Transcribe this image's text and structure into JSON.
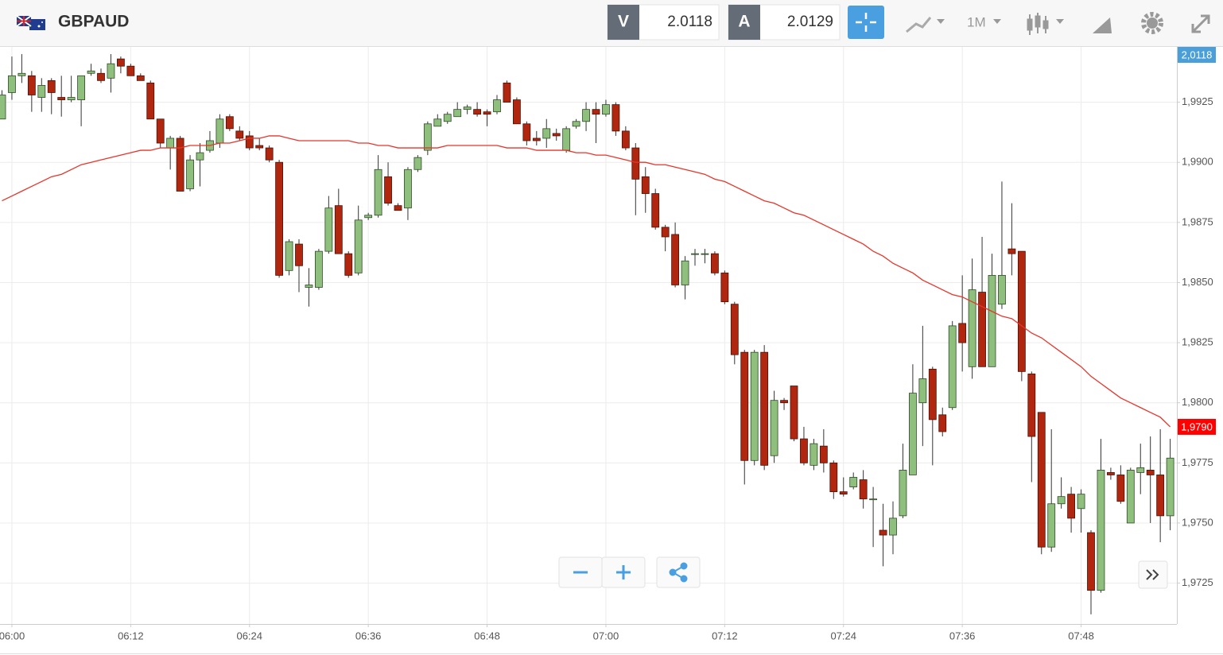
{
  "header": {
    "symbol": "GBPAUD",
    "bid_label": "V",
    "bid": 2.0118,
    "ask_label": "A",
    "ask": 2.0129,
    "timeframe": "1M"
  },
  "chart_data": {
    "type": "candlestick",
    "categories": [
      null,
      "06:00",
      null,
      null,
      null,
      null,
      null,
      null,
      null,
      null,
      null,
      null,
      null,
      "06:12",
      null,
      null,
      null,
      null,
      null,
      null,
      null,
      null,
      null,
      null,
      null,
      "06:24",
      null,
      null,
      null,
      null,
      null,
      null,
      null,
      null,
      null,
      null,
      null,
      "06:36",
      null,
      null,
      null,
      null,
      null,
      null,
      null,
      null,
      null,
      null,
      null,
      "06:48",
      null,
      null,
      null,
      null,
      null,
      null,
      null,
      null,
      null,
      null,
      null,
      "07:00",
      null,
      null,
      null,
      null,
      null,
      null,
      null,
      null,
      null,
      null,
      null,
      "07:12",
      null,
      null,
      null,
      null,
      null,
      null,
      null,
      null,
      null,
      null,
      null,
      "07:24",
      null,
      null,
      null,
      null,
      null,
      null,
      null,
      null,
      null,
      null,
      null,
      "07:36",
      null,
      null,
      null,
      null,
      null,
      null,
      null,
      null,
      null,
      null,
      null,
      "07:48",
      null,
      null,
      null,
      null,
      null,
      null,
      null,
      null,
      null
    ],
    "open": [
      1.9918,
      1.9929,
      1.9936,
      1.9936,
      1.9927,
      1.9934,
      1.9927,
      1.9926,
      1.9926,
      1.9937,
      1.9937,
      1.9935,
      1.9943,
      1.994,
      1.9936,
      1.9933,
      1.9918,
      1.9906,
      1.991,
      1.9889,
      1.9901,
      1.9905,
      1.9908,
      1.9919,
      1.9913,
      1.9911,
      1.9907,
      1.9906,
      1.99,
      1.9855,
      1.9866,
      1.9848,
      1.9848,
      1.9863,
      1.9882,
      1.9862,
      1.9854,
      1.9877,
      1.9878,
      1.9894,
      1.9882,
      1.9881,
      1.9897,
      1.9905,
      1.9915,
      1.9917,
      1.9919,
      1.9922,
      1.9922,
      1.9921,
      1.9921,
      1.9933,
      1.9926,
      1.9916,
      1.991,
      1.991,
      1.9912,
      1.9905,
      1.9915,
      1.9917,
      1.9922,
      1.992,
      1.9924,
      1.9913,
      1.9906,
      1.9894,
      1.9887,
      1.9873,
      1.987,
      1.9849,
      1.9862,
      1.9862,
      1.9862,
      1.9854,
      1.9841,
      1.9821,
      1.9776,
      1.9821,
      1.9778,
      1.9801,
      1.9807,
      1.9785,
      1.9774,
      1.9782,
      1.9775,
      1.9763,
      1.9765,
      1.9768,
      1.976,
      1.9747,
      1.9745,
      1.9753,
      1.977,
      1.98,
      1.9814,
      1.9795,
      1.9798,
      1.9833,
      1.9815,
      1.9846,
      1.9815,
      1.9841,
      1.9864,
      1.9863,
      1.9812,
      1.9796,
      1.974,
      1.9758,
      1.9762,
      1.9756,
      1.9746,
      1.9722,
      1.9771,
      1.977,
      1.975,
      1.9771,
      1.9772,
      1.977,
      1.9753
    ],
    "high": [
      1.993,
      1.9944,
      1.9945,
      1.9938,
      1.9935,
      1.9935,
      1.9936,
      1.9936,
      1.9936,
      1.9941,
      1.9939,
      1.9945,
      1.9944,
      1.9941,
      1.9937,
      1.9934,
      1.9918,
      1.9911,
      1.9911,
      1.9903,
      1.9908,
      1.9913,
      1.992,
      1.992,
      1.9915,
      1.9913,
      1.991,
      1.9907,
      1.9901,
      1.9868,
      1.9868,
      1.9856,
      1.9864,
      1.9886,
      1.9889,
      1.9863,
      1.9882,
      1.9879,
      1.9903,
      1.99,
      1.9883,
      1.9898,
      1.9903,
      1.9917,
      1.992,
      1.9921,
      1.9925,
      1.9924,
      1.9925,
      1.9922,
      1.9928,
      1.9934,
      1.9927,
      1.9917,
      1.9913,
      1.9918,
      1.9914,
      1.9915,
      1.9918,
      1.9925,
      1.9925,
      1.9926,
      1.9925,
      1.9915,
      1.9908,
      1.9898,
      1.9889,
      1.9874,
      1.9875,
      1.9861,
      1.9864,
      1.9864,
      1.9863,
      1.9855,
      1.9842,
      1.9822,
      1.9822,
      1.9824,
      1.9805,
      1.9802,
      1.9807,
      1.979,
      1.9785,
      1.9789,
      1.9776,
      1.9769,
      1.9771,
      1.9772,
      1.9765,
      1.9758,
      1.9759,
      1.9783,
      1.9816,
      1.9832,
      1.9815,
      1.9798,
      1.9834,
      1.9853,
      1.986,
      1.9869,
      1.9862,
      1.9892,
      1.9883,
      1.9863,
      1.9813,
      1.9796,
      1.9789,
      1.9769,
      1.9765,
      1.9764,
      1.9747,
      1.9785,
      1.9773,
      1.9774,
      1.9773,
      1.9783,
      1.9786,
      1.9789,
      1.9785
    ],
    "low": [
      1.9918,
      1.9926,
      1.9933,
      1.9921,
      1.9921,
      1.992,
      1.9919,
      1.9925,
      1.9915,
      1.9936,
      1.9933,
      1.9929,
      1.9937,
      1.9936,
      1.9934,
      1.9918,
      1.9906,
      1.9897,
      1.9888,
      1.9888,
      1.989,
      1.9904,
      1.9906,
      1.9913,
      1.9909,
      1.9905,
      1.9905,
      1.99,
      1.9852,
      1.9853,
      1.9846,
      1.984,
      1.9847,
      1.9862,
      1.9862,
      1.9852,
      1.9853,
      1.9876,
      1.9877,
      1.9882,
      1.988,
      1.9876,
      1.9896,
      1.9903,
      1.9915,
      1.9916,
      1.9919,
      1.992,
      1.9919,
      1.9915,
      1.992,
      1.9925,
      1.9916,
      1.9907,
      1.9907,
      1.9906,
      1.9909,
      1.9904,
      1.9914,
      1.9913,
      1.9908,
      1.9919,
      1.9911,
      1.9905,
      1.9878,
      1.9879,
      1.9872,
      1.9863,
      1.9848,
      1.9843,
      1.9857,
      1.9858,
      1.9853,
      1.9841,
      1.9816,
      1.9766,
      1.9774,
      1.9772,
      1.9775,
      1.9797,
      1.9784,
      1.9774,
      1.9772,
      1.9771,
      1.976,
      1.9761,
      1.9764,
      1.9756,
      1.974,
      1.9732,
      1.9737,
      1.9752,
      1.977,
      1.9782,
      1.9774,
      1.9786,
      1.9797,
      1.9813,
      1.981,
      1.9815,
      1.9815,
      1.9839,
      1.9853,
      1.9809,
      1.9767,
      1.9737,
      1.9738,
      1.9756,
      1.9746,
      1.9746,
      1.9712,
      1.9721,
      1.9768,
      1.9758,
      1.975,
      1.9762,
      1.975,
      1.9742,
      1.9747
    ],
    "close": [
      1.9928,
      1.9936,
      1.9937,
      1.9928,
      1.9932,
      1.9929,
      1.9926,
      1.9927,
      1.9936,
      1.9938,
      1.9934,
      1.9941,
      1.994,
      1.9936,
      1.9934,
      1.9918,
      1.9908,
      1.991,
      1.9888,
      1.9901,
      1.9904,
      1.9909,
      1.9918,
      1.9914,
      1.991,
      1.9906,
      1.9906,
      1.9901,
      1.9853,
      1.9867,
      1.9857,
      1.9849,
      1.9863,
      1.9881,
      1.9862,
      1.9853,
      1.9876,
      1.9878,
      1.9897,
      1.9883,
      1.988,
      1.9897,
      1.9902,
      1.9916,
      1.9918,
      1.992,
      1.9922,
      1.9923,
      1.992,
      1.992,
      1.9926,
      1.9925,
      1.9916,
      1.9909,
      1.9909,
      1.9914,
      1.9911,
      1.9914,
      1.9917,
      1.9922,
      1.992,
      1.9924,
      1.9913,
      1.9906,
      1.9893,
      1.9887,
      1.9873,
      1.9869,
      1.9849,
      1.9859,
      1.9862,
      1.9862,
      1.9854,
      1.9842,
      1.982,
      1.9776,
      1.9821,
      1.9774,
      1.9801,
      1.98,
      1.9785,
      1.9775,
      1.9783,
      1.9775,
      1.9763,
      1.9762,
      1.9769,
      1.976,
      1.976,
      1.9745,
      1.9752,
      1.9772,
      1.9804,
      1.981,
      1.9793,
      1.9788,
      1.9832,
      1.9825,
      1.9847,
      1.9815,
      1.9853,
      1.9853,
      1.9862,
      1.9813,
      1.9786,
      1.974,
      1.9758,
      1.9761,
      1.9752,
      1.9762,
      1.9722,
      1.9772,
      1.977,
      1.9759,
      1.9772,
      1.9773,
      1.977,
      1.9753,
      1.9777
    ],
    "up_color": "#8fbf7c",
    "down_color": "#b1260f",
    "series": [
      {
        "type": "line",
        "color": "#e8342a",
        "values": [
          1.9884,
          1.9886,
          1.9888,
          1.989,
          1.9892,
          1.9894,
          1.9895,
          1.9897,
          1.9899,
          1.99,
          1.9901,
          1.9902,
          1.9903,
          1.9904,
          1.9905,
          1.9905,
          1.9906,
          1.9906,
          1.9906,
          1.9907,
          1.9907,
          1.9907,
          1.9908,
          1.9908,
          1.9909,
          1.991,
          1.991,
          1.9911,
          1.9911,
          1.991,
          1.9909,
          1.9909,
          1.9909,
          1.9909,
          1.9909,
          1.9909,
          1.9908,
          1.9908,
          1.9907,
          1.9907,
          1.9906,
          1.9906,
          1.9906,
          1.9906,
          1.9906,
          1.9907,
          1.9907,
          1.9907,
          1.9907,
          1.9907,
          1.9907,
          1.9906,
          1.9906,
          1.9906,
          1.9905,
          1.9905,
          1.9905,
          1.9905,
          1.9904,
          1.9904,
          1.9903,
          1.9903,
          1.9902,
          1.9901,
          1.99,
          1.99,
          1.9899,
          1.9899,
          1.9898,
          1.9897,
          1.9896,
          1.9895,
          1.9893,
          1.9892,
          1.989,
          1.9888,
          1.9886,
          1.9884,
          1.9883,
          1.9881,
          1.9879,
          1.9878,
          1.9876,
          1.9874,
          1.9872,
          1.987,
          1.9868,
          1.9866,
          1.9863,
          1.9861,
          1.9858,
          1.9856,
          1.9854,
          1.9851,
          1.9849,
          1.9847,
          1.9845,
          1.9844,
          1.9842,
          1.984,
          1.9838,
          1.9836,
          1.9835,
          1.9832,
          1.9829,
          1.9827,
          1.9824,
          1.9821,
          1.9818,
          1.9815,
          1.9811,
          1.9808,
          1.9805,
          1.9802,
          1.98,
          1.9798,
          1.9796,
          1.9794,
          1.979
        ],
        "value_labels": [
          null,
          null,
          null,
          null,
          null,
          null,
          null,
          null,
          null,
          null,
          null,
          null,
          null,
          null,
          null,
          null,
          null,
          null,
          null,
          null,
          null,
          null,
          null,
          null,
          null,
          null,
          null,
          null,
          null,
          null,
          null,
          null,
          null,
          null,
          null,
          null,
          null,
          null,
          null,
          null,
          null,
          null,
          null,
          null,
          null,
          null,
          null,
          null,
          null,
          null,
          null,
          null,
          null,
          null,
          null,
          null,
          null,
          null,
          null,
          null,
          null,
          null,
          null,
          null,
          null,
          null,
          null,
          null,
          null,
          null,
          null,
          null,
          null,
          null,
          null,
          null,
          null,
          null,
          null,
          null,
          null,
          null,
          null,
          null,
          null,
          null,
          null,
          null,
          null,
          null,
          null,
          null,
          null,
          null,
          null,
          null,
          null,
          null,
          null,
          null,
          null,
          null,
          null,
          null,
          null,
          null,
          null,
          null,
          null,
          null,
          null,
          null,
          null,
          null,
          null,
          null,
          null,
          null,
          "1,9790"
        ]
      }
    ],
    "ylim": [
      1.9708,
      1.9948
    ],
    "yticks": [
      {
        "value": 1.9725,
        "label": "1,9725"
      },
      {
        "value": 1.975,
        "label": "1,9750"
      },
      {
        "value": 1.9775,
        "label": "1,9775"
      },
      {
        "value": 1.98,
        "label": "1,9800"
      },
      {
        "value": 1.9825,
        "label": "1,9825"
      },
      {
        "value": 1.985,
        "label": "1,9850"
      },
      {
        "value": 1.9875,
        "label": "1,9875"
      },
      {
        "value": 1.99,
        "label": "1,9900"
      },
      {
        "value": 1.9925,
        "label": "1,9925"
      }
    ],
    "grid": true,
    "bid_marker_label": "2,0118"
  }
}
